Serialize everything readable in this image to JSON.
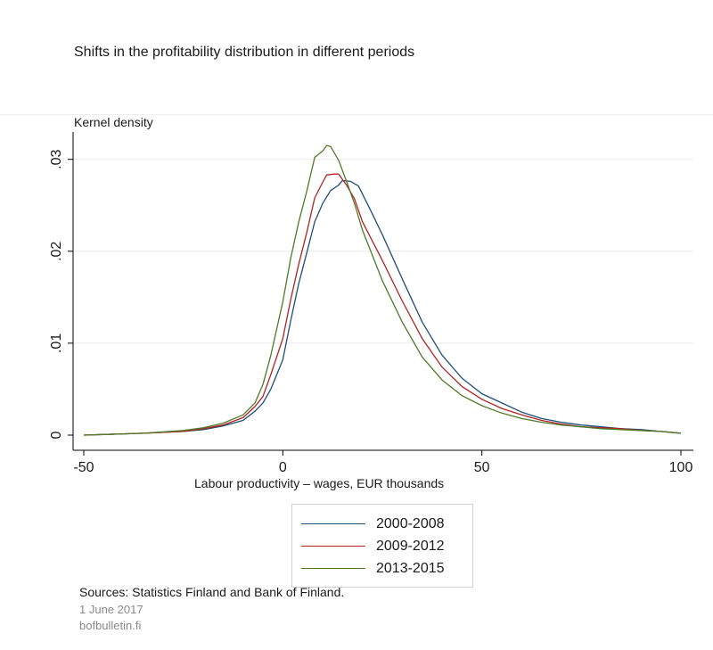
{
  "chart_data": {
    "type": "line",
    "title": "Shifts in the profitability distribution in different periods",
    "ylabel": "Kernel density",
    "xlabel": "Labour productivity – wages, EUR thousands",
    "xlim": [
      -50,
      100
    ],
    "ylim": [
      0,
      0.032
    ],
    "xticks": [
      -50,
      0,
      50,
      100
    ],
    "xtick_labels": [
      "-50",
      "0",
      "50",
      "100"
    ],
    "yticks": [
      0,
      0.01,
      0.02,
      0.03
    ],
    "ytick_labels": [
      "0",
      ".01",
      ".02",
      ".03"
    ],
    "grid": true,
    "legend": "bottom",
    "series": [
      {
        "name": "2000-2008",
        "color": "#1f4e79",
        "points": [
          [
            -50,
            0
          ],
          [
            -35,
            0.0002
          ],
          [
            -25,
            0.0004
          ],
          [
            -20,
            0.0006
          ],
          [
            -15,
            0.001
          ],
          [
            -10,
            0.0016
          ],
          [
            -7,
            0.0026
          ],
          [
            -5,
            0.0035
          ],
          [
            -3,
            0.005
          ],
          [
            0,
            0.0082
          ],
          [
            2,
            0.0125
          ],
          [
            4,
            0.0165
          ],
          [
            6,
            0.0198
          ],
          [
            8,
            0.0232
          ],
          [
            10,
            0.0252
          ],
          [
            12,
            0.0266
          ],
          [
            14,
            0.0272
          ],
          [
            15,
            0.0277
          ],
          [
            17,
            0.0276
          ],
          [
            19,
            0.0271
          ],
          [
            22,
            0.0245
          ],
          [
            25,
            0.0218
          ],
          [
            30,
            0.017
          ],
          [
            35,
            0.0123
          ],
          [
            40,
            0.0087
          ],
          [
            45,
            0.0062
          ],
          [
            50,
            0.0045
          ],
          [
            55,
            0.0035
          ],
          [
            60,
            0.0025
          ],
          [
            65,
            0.0018
          ],
          [
            70,
            0.0014
          ],
          [
            75,
            0.0011
          ],
          [
            80,
            0.0009
          ],
          [
            85,
            0.0007
          ],
          [
            90,
            0.0006
          ],
          [
            95,
            0.0004
          ],
          [
            100,
            0.0002
          ]
        ]
      },
      {
        "name": "2009-2012",
        "color": "#b22222",
        "points": [
          [
            -50,
            0
          ],
          [
            -35,
            0.0002
          ],
          [
            -25,
            0.0004
          ],
          [
            -20,
            0.0007
          ],
          [
            -15,
            0.0011
          ],
          [
            -10,
            0.0019
          ],
          [
            -7,
            0.0031
          ],
          [
            -5,
            0.0042
          ],
          [
            -3,
            0.0066
          ],
          [
            0,
            0.0105
          ],
          [
            2,
            0.0148
          ],
          [
            4,
            0.0186
          ],
          [
            6,
            0.022
          ],
          [
            8,
            0.0258
          ],
          [
            10,
            0.0275
          ],
          [
            11,
            0.0283
          ],
          [
            13,
            0.0284
          ],
          [
            14,
            0.0284
          ],
          [
            16,
            0.0272
          ],
          [
            18,
            0.0257
          ],
          [
            20,
            0.0232
          ],
          [
            25,
            0.019
          ],
          [
            30,
            0.0146
          ],
          [
            35,
            0.0105
          ],
          [
            40,
            0.0074
          ],
          [
            45,
            0.0053
          ],
          [
            50,
            0.0039
          ],
          [
            55,
            0.0029
          ],
          [
            60,
            0.0022
          ],
          [
            65,
            0.0016
          ],
          [
            70,
            0.0012
          ],
          [
            75,
            0.0009
          ],
          [
            80,
            0.0008
          ],
          [
            85,
            0.0007
          ],
          [
            90,
            0.0005
          ],
          [
            95,
            0.0004
          ],
          [
            100,
            0.0002
          ]
        ]
      },
      {
        "name": "2013-2015",
        "color": "#4f7a28",
        "points": [
          [
            -50,
            0
          ],
          [
            -35,
            0.0002
          ],
          [
            -25,
            0.0005
          ],
          [
            -20,
            0.0008
          ],
          [
            -15,
            0.0013
          ],
          [
            -10,
            0.0022
          ],
          [
            -7,
            0.0035
          ],
          [
            -5,
            0.0055
          ],
          [
            -3,
            0.0087
          ],
          [
            0,
            0.0145
          ],
          [
            2,
            0.0193
          ],
          [
            4,
            0.0232
          ],
          [
            6,
            0.0265
          ],
          [
            8,
            0.0302
          ],
          [
            10,
            0.0309
          ],
          [
            11,
            0.0315
          ],
          [
            12,
            0.0314
          ],
          [
            14,
            0.0299
          ],
          [
            16,
            0.0276
          ],
          [
            18,
            0.0252
          ],
          [
            20,
            0.0223
          ],
          [
            25,
            0.0168
          ],
          [
            30,
            0.0123
          ],
          [
            35,
            0.0085
          ],
          [
            40,
            0.006
          ],
          [
            45,
            0.0043
          ],
          [
            50,
            0.0032
          ],
          [
            55,
            0.0024
          ],
          [
            60,
            0.0018
          ],
          [
            65,
            0.0014
          ],
          [
            70,
            0.0011
          ],
          [
            75,
            0.0009
          ],
          [
            80,
            0.0007
          ],
          [
            85,
            0.0006
          ],
          [
            90,
            0.0005
          ],
          [
            95,
            0.0004
          ],
          [
            100,
            0.0002
          ]
        ]
      }
    ]
  },
  "footer": {
    "sources": "Sources: Statistics Finland and Bank of Finland.",
    "date": "1 June 2017",
    "site": "bofbulletin.fi"
  }
}
